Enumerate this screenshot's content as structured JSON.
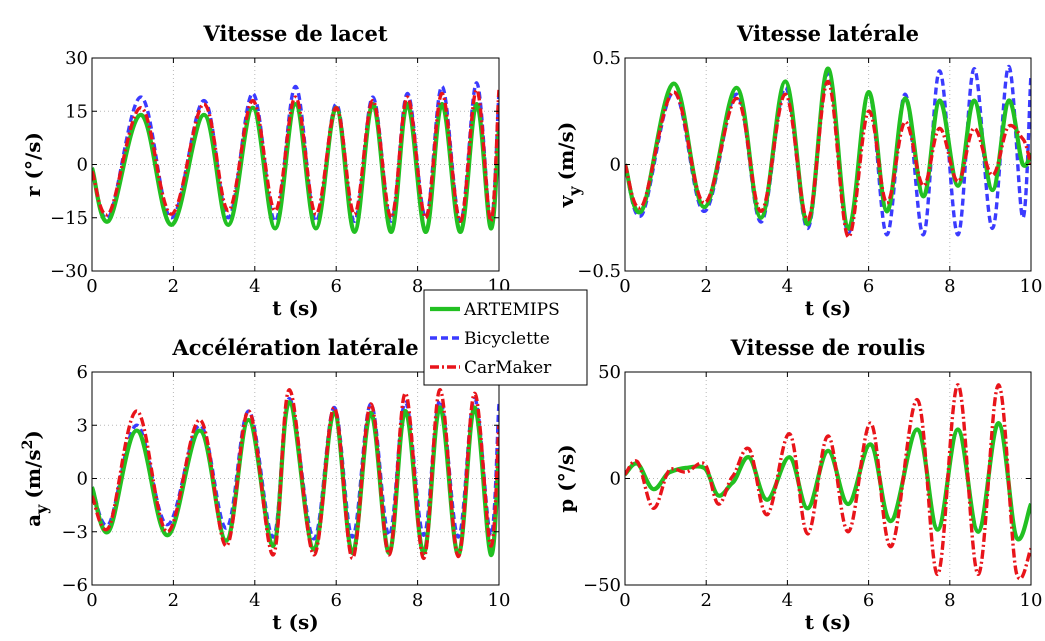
{
  "colors": {
    "ARTEMIPS": "#22c022",
    "Bicyclette": "#3b3bff",
    "CarMaker": "#e8141a"
  },
  "legend": {
    "placement": "center",
    "items": [
      {
        "name": "ARTEMIPS",
        "style": "solid"
      },
      {
        "name": "Bicyclette",
        "style": "dashed"
      },
      {
        "name": "CarMaker",
        "style": "dash-dot"
      }
    ]
  },
  "chart_data": [
    {
      "type": "line",
      "title": "Vitesse de lacet",
      "xlabel": "t (s)",
      "ylabel": "r (°/s)",
      "xlim": [
        0,
        10
      ],
      "ylim": [
        -30,
        30
      ],
      "xticks": [
        0,
        2,
        4,
        6,
        8,
        10
      ],
      "yticks": [
        -30,
        -15,
        0,
        15,
        30
      ],
      "ytick_labels": [
        "−30",
        "−15",
        "0",
        "15",
        "30"
      ],
      "grid": true,
      "x": [
        0,
        0.4,
        1.2,
        1.95,
        2.75,
        3.35,
        3.95,
        4.5,
        5.0,
        5.5,
        6.0,
        6.45,
        6.9,
        7.35,
        7.75,
        8.2,
        8.6,
        9.05,
        9.45,
        9.8,
        10.0
      ],
      "series": [
        {
          "name": "ARTEMIPS",
          "values": [
            -1,
            -16,
            14,
            -17,
            14,
            -17,
            16,
            -18,
            17,
            -18,
            16,
            -19,
            17,
            -19,
            17,
            -19,
            17,
            -19,
            17,
            -18,
            10
          ]
        },
        {
          "name": "Bicyclette",
          "values": [
            -1,
            -15,
            19,
            -15,
            18,
            -15,
            20,
            -16,
            22,
            -16,
            17,
            -16,
            19,
            -16,
            20,
            -15,
            22,
            -16,
            23,
            -16,
            20
          ]
        },
        {
          "name": "CarMaker",
          "values": [
            -2,
            -14,
            16,
            -14,
            17,
            -13,
            18,
            -13,
            19,
            -14,
            16,
            -14,
            18,
            -15,
            19,
            -15,
            20,
            -16,
            21,
            -16,
            21
          ]
        }
      ]
    },
    {
      "type": "line",
      "title": "Vitesse latérale",
      "xlabel": "t (s)",
      "ylabel": "v",
      "ylabel_sub": "y",
      "ylabel_unit": "(m/s)",
      "xlim": [
        0,
        10
      ],
      "ylim": [
        -0.5,
        0.5
      ],
      "xticks": [
        0,
        2,
        4,
        6,
        8,
        10
      ],
      "yticks": [
        -0.5,
        0,
        0.5
      ],
      "ytick_labels": [
        "−0.5",
        "0",
        "0.5"
      ],
      "grid": true,
      "x": [
        0,
        0.4,
        1.2,
        1.95,
        2.75,
        3.35,
        3.95,
        4.5,
        5.0,
        5.5,
        6.0,
        6.45,
        6.9,
        7.35,
        7.75,
        8.2,
        8.6,
        9.05,
        9.45,
        9.8,
        10.0
      ],
      "series": [
        {
          "name": "ARTEMIPS",
          "values": [
            0,
            -0.22,
            0.38,
            -0.2,
            0.36,
            -0.25,
            0.39,
            -0.28,
            0.45,
            -0.3,
            0.34,
            -0.22,
            0.31,
            -0.15,
            0.3,
            -0.1,
            0.3,
            -0.12,
            0.3,
            0.0,
            0.05
          ]
        },
        {
          "name": "Bicyclette",
          "values": [
            0,
            -0.24,
            0.34,
            -0.22,
            0.33,
            -0.27,
            0.36,
            -0.3,
            0.43,
            -0.32,
            0.34,
            -0.33,
            0.33,
            -0.33,
            0.44,
            -0.33,
            0.45,
            -0.3,
            0.46,
            -0.25,
            0.42
          ]
        },
        {
          "name": "CarMaker",
          "values": [
            0,
            -0.2,
            0.34,
            -0.18,
            0.31,
            -0.22,
            0.33,
            -0.26,
            0.39,
            -0.34,
            0.25,
            -0.18,
            0.2,
            -0.1,
            0.17,
            -0.08,
            0.17,
            -0.05,
            0.18,
            0.12,
            0.0
          ]
        }
      ]
    },
    {
      "type": "line",
      "title": "Accélération latérale",
      "xlabel": "t (s)",
      "ylabel": "a",
      "ylabel_sub": "y",
      "ylabel_unit": "(m/s",
      "ylabel_sup": "2",
      "ylabel_close": ")",
      "xlim": [
        0,
        10
      ],
      "ylim": [
        -6,
        6
      ],
      "xticks": [
        0,
        2,
        4,
        6,
        8,
        10
      ],
      "yticks": [
        -6,
        -3,
        0,
        3,
        6
      ],
      "ytick_labels": [
        "−6",
        "−3",
        "0",
        "3",
        "6"
      ],
      "grid": true,
      "x": [
        0,
        0.4,
        1.1,
        1.85,
        2.65,
        3.3,
        3.85,
        4.45,
        4.85,
        5.45,
        5.95,
        6.4,
        6.85,
        7.3,
        7.7,
        8.15,
        8.55,
        9.0,
        9.4,
        9.8,
        10.0
      ],
      "series": [
        {
          "name": "ARTEMIPS",
          "values": [
            -0.5,
            -3.0,
            2.7,
            -3.2,
            2.7,
            -3.5,
            3.3,
            -3.8,
            4.3,
            -4.0,
            3.7,
            -4.2,
            3.7,
            -4.2,
            3.8,
            -4.2,
            4.0,
            -4.3,
            4.0,
            -4.3,
            1.5
          ]
        },
        {
          "name": "Bicyclette",
          "values": [
            -0.5,
            -2.6,
            3.0,
            -2.6,
            3.0,
            -2.8,
            3.8,
            -3.3,
            4.5,
            -3.4,
            4.0,
            -3.3,
            4.2,
            -3.2,
            4.3,
            -3.2,
            4.4,
            -3.3,
            4.5,
            -3.2,
            4.2
          ]
        },
        {
          "name": "CarMaker",
          "values": [
            -1.0,
            -2.8,
            3.8,
            -3.0,
            3.3,
            -3.8,
            3.8,
            -4.3,
            5.0,
            -4.3,
            4.0,
            -4.5,
            4.2,
            -4.3,
            4.8,
            -4.5,
            5.0,
            -4.4,
            4.8,
            -3.8,
            3.0
          ]
        }
      ]
    },
    {
      "type": "line",
      "title": "Vitesse de roulis",
      "xlabel": "t (s)",
      "ylabel": "p (°/s)",
      "xlim": [
        0,
        10
      ],
      "ylim": [
        -50,
        50
      ],
      "xticks": [
        0,
        2,
        4,
        6,
        8,
        10
      ],
      "yticks": [
        -50,
        0,
        50
      ],
      "ytick_labels": [
        "−50",
        "0",
        "50"
      ],
      "grid": true,
      "x": [
        0,
        0.3,
        0.7,
        1.1,
        1.5,
        1.95,
        2.3,
        2.65,
        3.05,
        3.5,
        4.05,
        4.5,
        5.0,
        5.5,
        6.05,
        6.55,
        7.2,
        7.7,
        8.2,
        8.7,
        9.2,
        9.65,
        10.0
      ],
      "series": [
        {
          "name": "ARTEMIPS",
          "values": [
            2,
            7,
            -5,
            3,
            5,
            5,
            -8,
            -2,
            10,
            -10,
            10,
            -14,
            13,
            -12,
            16,
            -20,
            23,
            -24,
            23,
            -25,
            26,
            -28,
            -12
          ]
        },
        {
          "name": "Bicyclette",
          "values": [
            2,
            7,
            -5,
            3,
            5,
            5,
            -8,
            -2,
            10,
            -10,
            10,
            -14,
            13,
            -12,
            16,
            -20,
            23,
            -24,
            23,
            -25,
            26,
            -28,
            -12
          ]
        },
        {
          "name": "CarMaker",
          "values": [
            2,
            8,
            -14,
            4,
            3,
            7,
            -12,
            1,
            14,
            -17,
            21,
            -26,
            20,
            -25,
            26,
            -32,
            37,
            -45,
            44,
            -45,
            44,
            -45,
            -33
          ]
        }
      ]
    }
  ]
}
